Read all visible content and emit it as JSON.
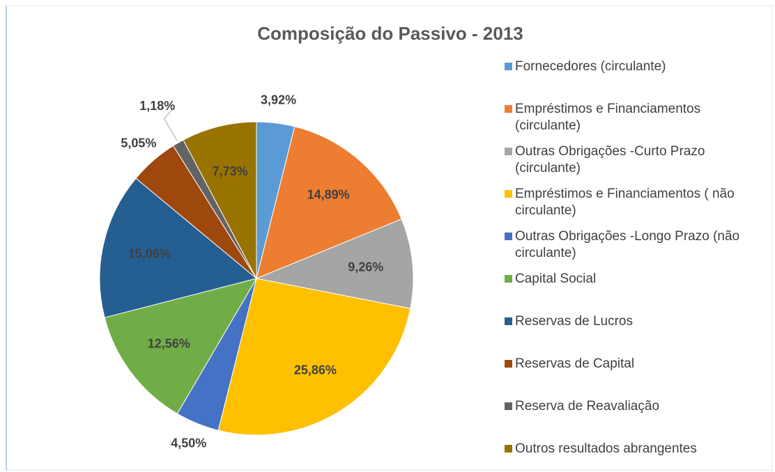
{
  "chart_data": {
    "type": "pie",
    "title": "Composição do Passivo - 2013",
    "categories": [
      "Fornecedores (circulante)",
      "Empréstimos e Financiamentos (circulante)",
      "Outras Obrigações -Curto Prazo (circulante)",
      "Empréstimos e Financiamentos ( não circulante)",
      "Outras Obrigações -Longo Prazo (não circulante)",
      "Capital Social",
      "Reservas de Lucros",
      "Reservas de Capital",
      "Reserva de Reavaliação",
      "Outros resultados abrangentes"
    ],
    "values": [
      3.92,
      14.89,
      9.26,
      25.86,
      4.5,
      12.56,
      15.06,
      5.05,
      1.18,
      7.73
    ],
    "value_labels": [
      "3,92%",
      "14,89%",
      "9,26%",
      "25,86%",
      "4,50%",
      "12,56%",
      "15,06%",
      "5,05%",
      "1,18%",
      "7,73%"
    ],
    "colors": [
      "#5b9bd5",
      "#ed7d31",
      "#a5a5a5",
      "#ffc000",
      "#4472c4",
      "#70ad47",
      "#255e91",
      "#9e480e",
      "#636363",
      "#997300"
    ],
    "legend": "right"
  }
}
